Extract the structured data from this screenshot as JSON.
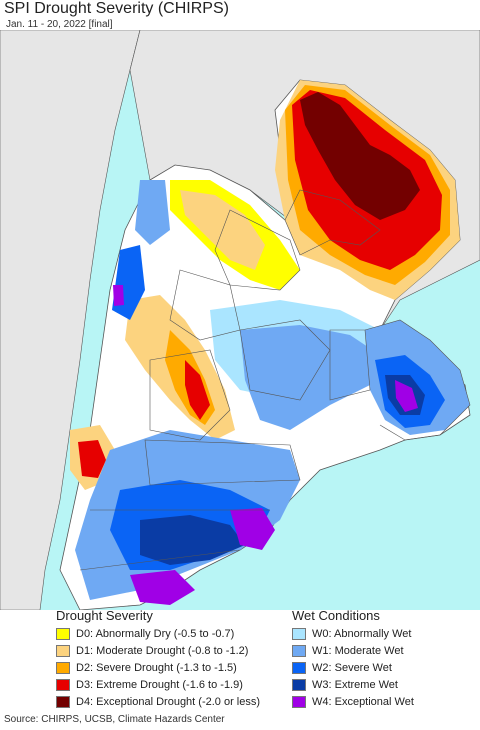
{
  "header": {
    "title": "SPI Drought Severity (CHIRPS)",
    "subtitle": "Jan. 11 - 20, 2022 [final]"
  },
  "legend": {
    "drought": {
      "heading": "Drought Severity",
      "items": [
        {
          "label": "D0: Abnormally Dry (-0.5 to -0.7)",
          "color": "#ffff00"
        },
        {
          "label": "D1: Moderate Drought (-0.8 to -1.2)",
          "color": "#fcd37f"
        },
        {
          "label": "D2: Severe Drought (-1.3 to -1.5)",
          "color": "#ffaa00"
        },
        {
          "label": "D3: Extreme Drought (-1.6 to -1.9)",
          "color": "#e60000"
        },
        {
          "label": "D4: Exceptional Drought (-2.0 or less)",
          "color": "#730000"
        }
      ]
    },
    "wet": {
      "heading": "Wet Conditions",
      "items": [
        {
          "label": "W0: Abnormally Wet",
          "color": "#aae5ff"
        },
        {
          "label": "W1: Moderate Wet",
          "color": "#6fa9f3"
        },
        {
          "label": "W2: Severe Wet",
          "color": "#0a64f5"
        },
        {
          "label": "W3: Extreme Wet",
          "color": "#0a3ca5"
        },
        {
          "label": "W4: Exceptional Wet",
          "color": "#a000e6"
        }
      ]
    }
  },
  "colors": {
    "ocean": "#b8f5f5",
    "outside_land": "#e6e6e6",
    "land": "#ffffff",
    "borders": "#555555"
  },
  "footer": {
    "source": "Source: CHIRPS, UCSB, Climate Hazards Center"
  }
}
